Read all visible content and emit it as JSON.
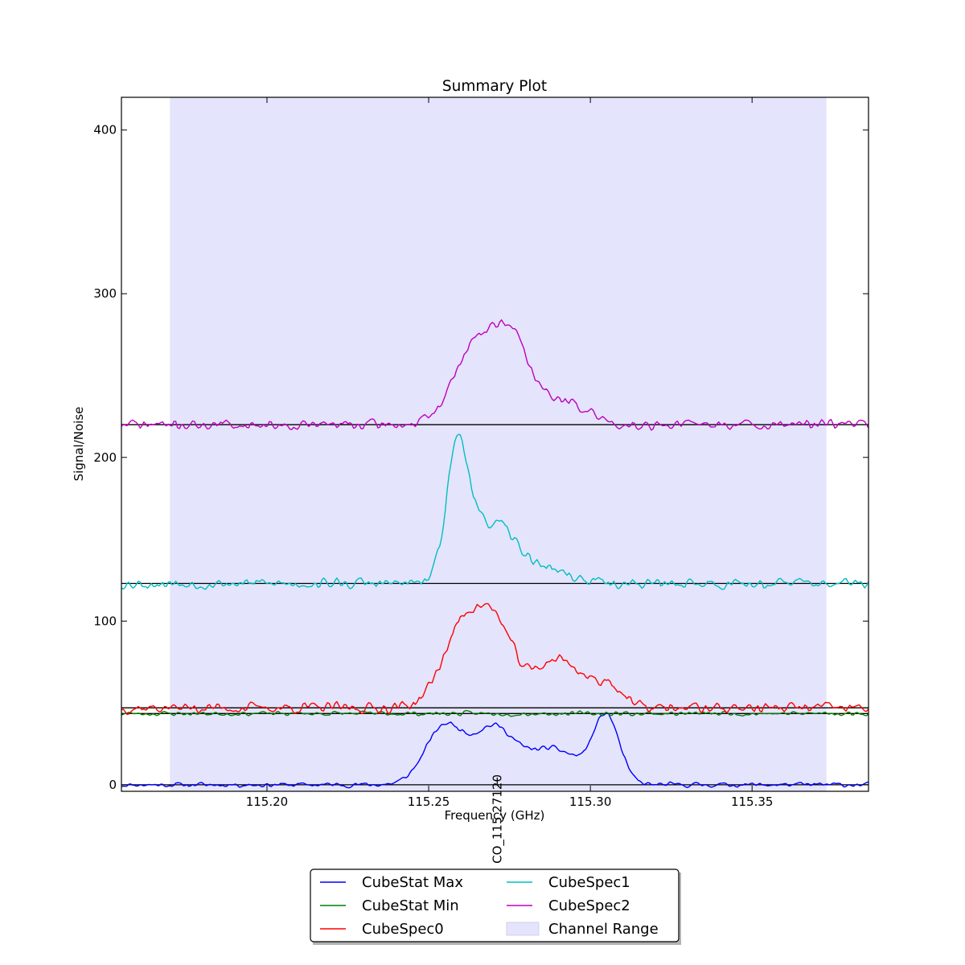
{
  "chart_data": {
    "type": "line",
    "title": "Summary Plot",
    "xlabel": "Frequency (GHz)",
    "ylabel": "Signal/Noise",
    "xlim": [
      115.155,
      115.386
    ],
    "ylim": [
      -4,
      420
    ],
    "x_ticks": [
      "115.20",
      "115.25",
      "115.30",
      "115.35"
    ],
    "x_tick_values": [
      115.2,
      115.25,
      115.3,
      115.35
    ],
    "y_ticks": [
      "0",
      "100",
      "200",
      "300",
      "400"
    ],
    "y_tick_values": [
      0,
      100,
      200,
      300,
      400
    ],
    "grid": false,
    "legend_position": "below plot, center",
    "channel_range": {
      "label": "Channel Range",
      "x0": 115.17,
      "x1": 115.373,
      "color": "#e4e4fc"
    },
    "line_marker": {
      "label": "CO_115.27120",
      "x": 115.2712
    },
    "baselines": [
      0,
      43.5,
      47,
      123,
      220
    ],
    "series": [
      {
        "name": "CubeStat Max",
        "color": "#0000ff",
        "baseline": 0,
        "noise": 1.1,
        "seed": 11,
        "features": [
          [
            115.255,
            6.0,
            36
          ],
          [
            115.27,
            6.0,
            32
          ],
          [
            115.288,
            9.0,
            22
          ],
          [
            115.305,
            4.0,
            40
          ]
        ]
      },
      {
        "name": "CubeStat Min",
        "color": "#008000",
        "baseline": 43.5,
        "noise": 1.1,
        "seed": 23,
        "features": []
      },
      {
        "name": "CubeSpec0",
        "color": "#ff0000",
        "baseline": 47,
        "noise": 2.6,
        "seed": 37,
        "features": [
          [
            115.262,
            7.0,
            55
          ],
          [
            115.272,
            5.0,
            32
          ],
          [
            115.29,
            8.0,
            30
          ],
          [
            115.306,
            4.0,
            12
          ]
        ]
      },
      {
        "name": "CubeSpec1",
        "color": "#00bfbf",
        "baseline": 123,
        "noise": 2.6,
        "seed": 53,
        "features": [
          [
            115.259,
            3.5,
            82
          ],
          [
            115.27,
            6.5,
            35
          ],
          [
            115.285,
            8.0,
            9
          ]
        ]
      },
      {
        "name": "CubeSpec2",
        "color": "#bf00bf",
        "baseline": 220,
        "noise": 2.4,
        "seed": 71,
        "features": [
          [
            115.263,
            6.0,
            42
          ],
          [
            115.275,
            6.0,
            55
          ],
          [
            115.292,
            7.0,
            14
          ]
        ]
      }
    ]
  }
}
